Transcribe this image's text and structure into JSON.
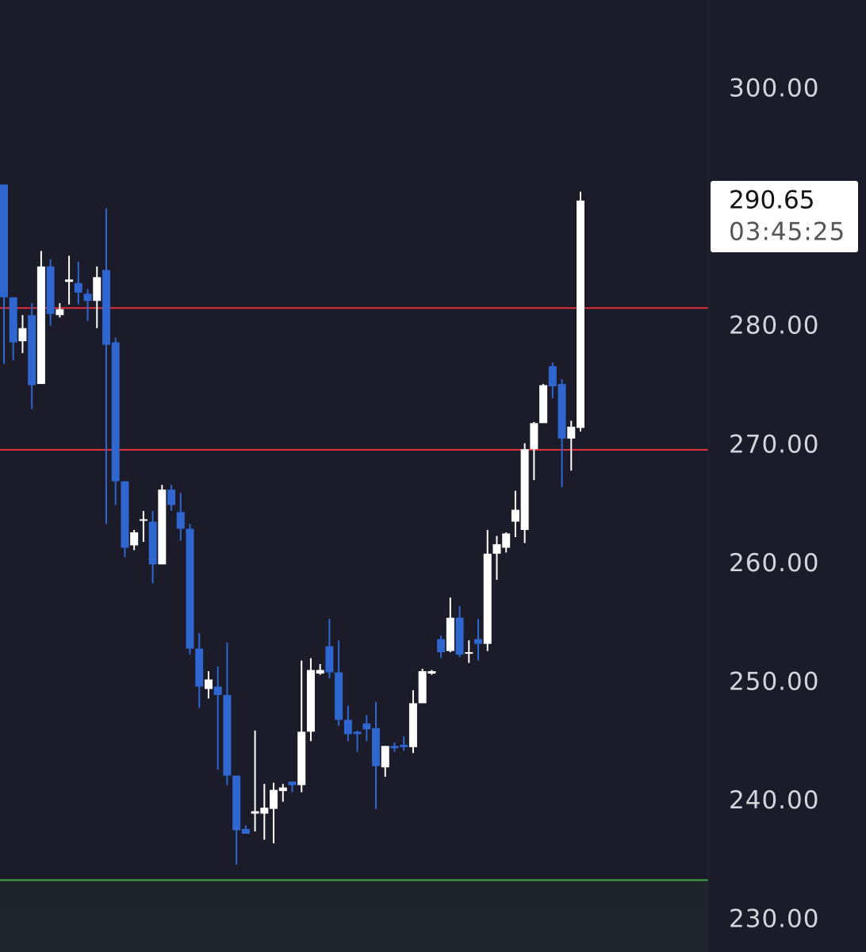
{
  "chart_data": {
    "type": "candlestick",
    "ylim": [
      227.34,
      307.55
    ],
    "yticks": [
      {
        "value": 300,
        "label": "300.00"
      },
      {
        "value": 290,
        "label": "290.00"
      },
      {
        "value": 280,
        "label": "280.00"
      },
      {
        "value": 270,
        "label": "270.00"
      },
      {
        "value": 260,
        "label": "260.00"
      },
      {
        "value": 250,
        "label": "250.00"
      },
      {
        "value": 240,
        "label": "240.00"
      },
      {
        "value": 230,
        "label": "230.00"
      }
    ],
    "up_color": "#ffffff",
    "down_color": "#2f66d0",
    "open": [
      292.0,
      282.5,
      278.8,
      281.0,
      275.2,
      285.1,
      281.0,
      283.8,
      283.7,
      282.8,
      282.2,
      284.8,
      278.7,
      267.0,
      261.6,
      263.7,
      263.6,
      260.0,
      266.3,
      264.4,
      263.0,
      252.9,
      249.5,
      249.7,
      249.0,
      242.2,
      237.7,
      239.0,
      239.0,
      239.4,
      240.9,
      241.7,
      241.4,
      245.9,
      250.8,
      253.1,
      250.9,
      246.9,
      245.9,
      246.6,
      246.2,
      242.9,
      244.7,
      244.8,
      244.6,
      248.3,
      250.8,
      253.7,
      252.7,
      255.5,
      252.5,
      253.7,
      253.3,
      260.9,
      261.4,
      263.6,
      262.9,
      269.7,
      271.9,
      276.7,
      275.2,
      270.6,
      271.5
    ],
    "high": [
      292.0,
      282.5,
      281.0,
      282.0,
      286.4,
      285.7,
      282.0,
      286.0,
      285.5,
      283.2,
      285.1,
      290.0,
      279.1,
      267.0,
      262.9,
      264.5,
      264.5,
      266.7,
      266.7,
      266.0,
      263.4,
      254.2,
      251.0,
      251.4,
      253.4,
      242.2,
      238.0,
      246.0,
      241.5,
      241.6,
      241.5,
      241.7,
      251.9,
      252.1,
      251.6,
      255.4,
      253.6,
      248.1,
      246.0,
      247.3,
      248.4,
      244.7,
      245.0,
      245.5,
      249.4,
      251.2,
      251.1,
      254.0,
      257.2,
      256.5,
      253.6,
      255.4,
      262.9,
      262.4,
      262.7,
      266.2,
      270.2,
      272.0,
      275.2,
      277.0,
      275.6,
      272.1,
      291.4
    ],
    "low": [
      276.9,
      277.2,
      277.8,
      273.1,
      275.2,
      280.1,
      280.8,
      281.9,
      281.9,
      280.5,
      279.9,
      263.4,
      265.0,
      260.6,
      261.2,
      261.9,
      258.4,
      260.0,
      264.5,
      262.0,
      252.4,
      247.9,
      248.7,
      242.7,
      241.4,
      234.7,
      237.3,
      237.5,
      236.8,
      236.5,
      240.0,
      240.8,
      240.8,
      245.1,
      250.7,
      250.4,
      246.4,
      245.1,
      244.2,
      245.1,
      239.4,
      242.1,
      244.2,
      244.3,
      244.1,
      248.3,
      250.7,
      252.1,
      252.6,
      252.2,
      251.7,
      251.9,
      252.7,
      258.7,
      261.0,
      262.3,
      261.8,
      267.1,
      272.0,
      274.0,
      266.5,
      267.9,
      271.2
    ],
    "close": [
      282.5,
      278.7,
      279.9,
      275.1,
      285.1,
      281.1,
      281.5,
      284.0,
      282.9,
      282.2,
      284.2,
      278.5,
      267.0,
      261.4,
      262.7,
      263.8,
      260.0,
      266.3,
      265.0,
      263.0,
      252.9,
      249.7,
      250.3,
      249.0,
      242.2,
      237.6,
      237.3,
      239.2,
      239.5,
      241.0,
      241.2,
      241.4,
      245.9,
      251.1,
      251.1,
      250.9,
      246.9,
      245.7,
      245.7,
      246.1,
      243.0,
      244.7,
      244.5,
      244.6,
      248.3,
      251.0,
      251.0,
      252.6,
      255.5,
      252.4,
      252.6,
      253.3,
      260.9,
      261.7,
      262.6,
      264.6,
      269.7,
      271.9,
      275.1,
      275.0,
      270.6,
      271.6,
      290.65
    ],
    "reference_lines": [
      {
        "value": 281.6,
        "color": "#e0303c"
      },
      {
        "value": 269.65,
        "color": "#e0303c"
      },
      {
        "value": 233.4,
        "color": "#3fa84a"
      }
    ],
    "last_price": 290.65,
    "countdown": "03:45:25"
  }
}
